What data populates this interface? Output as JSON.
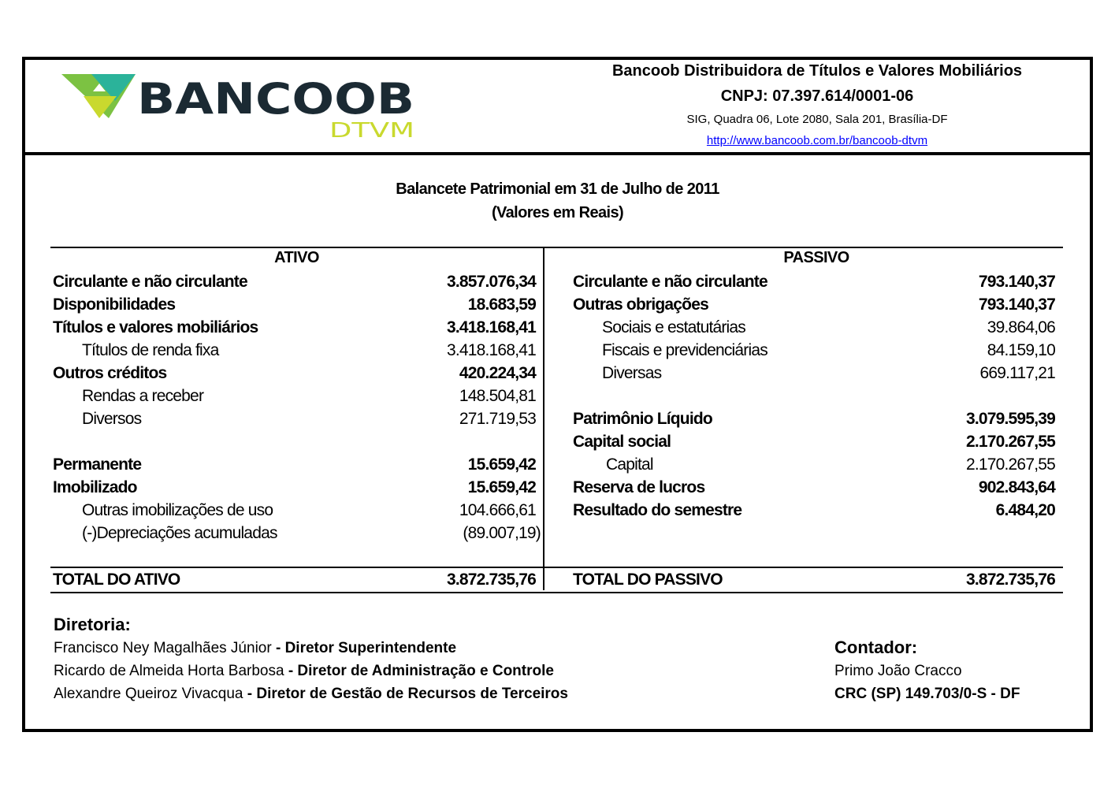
{
  "header": {
    "logo_text": "BANCOOB",
    "logo_subtext": "DTVM",
    "company_name": "Bancoob Distribuidora de Títulos e Valores Mobiliários",
    "cnpj": "CNPJ: 07.397.614/0001-06",
    "address": "SIG, Quadra 06, Lote 2080, Sala 201, Brasília-DF",
    "url": "http://www.bancoob.com.br/bancoob-dtvm",
    "colors": {
      "logo_dark": "#1b2a33",
      "logo_green": "#7cc242",
      "logo_teal": "#2bb39a",
      "logo_yellow": "#c9d92e"
    }
  },
  "title": {
    "line1": "Balancete Patrimonial em 31 de Julho de 2011",
    "line2": "(Valores em Reais)"
  },
  "ativo": {
    "heading": "ATIVO",
    "rows": [
      {
        "label": "Circulante e não circulante",
        "value": "3.857.076,34",
        "bold": true,
        "indent": 0
      },
      {
        "label": "Disponibilidades",
        "value": "18.683,59",
        "bold": true,
        "indent": 0
      },
      {
        "label": "Títulos e valores mobiliários",
        "value": "3.418.168,41",
        "bold": true,
        "indent": 0
      },
      {
        "label": "Títulos de renda fixa",
        "value": "3.418.168,41",
        "bold": false,
        "indent": 1
      },
      {
        "label": "Outros créditos",
        "value": "420.224,34",
        "bold": true,
        "indent": 0
      },
      {
        "label": "Rendas a receber",
        "value": "148.504,81",
        "bold": false,
        "indent": 1
      },
      {
        "label": "Diversos",
        "value": "271.719,53",
        "bold": false,
        "indent": 1
      },
      {
        "label": "",
        "value": "",
        "bold": false,
        "indent": 0
      },
      {
        "label": "Permanente",
        "value": "15.659,42",
        "bold": true,
        "indent": 0
      },
      {
        "label": "Imobilizado",
        "value": "15.659,42",
        "bold": true,
        "indent": 0
      },
      {
        "label": "Outras imobilizações de uso",
        "value": "104.666,61",
        "bold": false,
        "indent": 1
      },
      {
        "label": "(-)Depreciações acumuladas",
        "value": "(89.007,19)",
        "bold": false,
        "indent": 1
      }
    ],
    "total_label": "TOTAL DO ATIVO",
    "total_value": "3.872.735,76"
  },
  "passivo": {
    "heading": "PASSIVO",
    "rows": [
      {
        "label": "Circulante e não circulante",
        "value": "793.140,37",
        "bold": true,
        "indent": 0
      },
      {
        "label": "Outras obrigações",
        "value": "793.140,37",
        "bold": true,
        "indent": 0
      },
      {
        "label": "Sociais e estatutárias",
        "value": "39.864,06",
        "bold": false,
        "indent": 1
      },
      {
        "label": "Fiscais e previdenciárias",
        "value": "84.159,10",
        "bold": false,
        "indent": 1
      },
      {
        "label": "Diversas",
        "value": "669.117,21",
        "bold": false,
        "indent": 1
      },
      {
        "label": "",
        "value": "",
        "bold": false,
        "indent": 0
      },
      {
        "label": "Patrimônio Líquido",
        "value": "3.079.595,39",
        "bold": true,
        "indent": 0
      },
      {
        "label": "Capital social",
        "value": "2.170.267,55",
        "bold": true,
        "indent": 0
      },
      {
        "label": "Capital",
        "value": "2.170.267,55",
        "bold": false,
        "indent": 2
      },
      {
        "label": "Reserva de lucros",
        "value": "902.843,64",
        "bold": true,
        "indent": 0
      },
      {
        "label": "Resultado do semestre",
        "value": "6.484,20",
        "bold": true,
        "indent": 0
      }
    ],
    "total_label": "TOTAL DO PASSIVO",
    "total_value": "3.872.735,76"
  },
  "diretoria": {
    "heading": "Diretoria:",
    "members": [
      {
        "name": "Francisco Ney Magalhães Júnior",
        "role": " - Diretor Superintendente"
      },
      {
        "name": "Ricardo de Almeida Horta Barbosa",
        "role": " - Diretor de Administração e Controle"
      },
      {
        "name": "Alexandre Queiroz Vivacqua",
        "role": " - Diretor de Gestão de Recursos de Terceiros"
      }
    ]
  },
  "contador": {
    "heading": "Contador:",
    "name": "Primo João Cracco",
    "crc": "CRC (SP) 149.703/0-S - DF"
  }
}
